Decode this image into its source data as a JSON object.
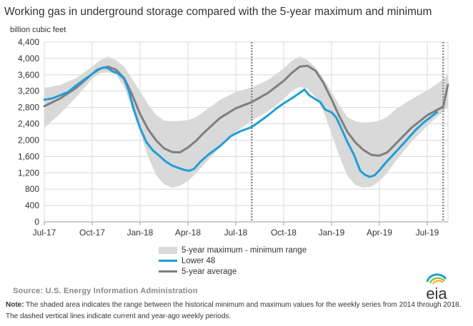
{
  "title": "Working gas in underground storage compared with the 5-year maximum and minimum",
  "ylabel": "billion cubic feet",
  "legend": {
    "range": "5-year maximum - minimum range",
    "lower48": "Lower 48",
    "average": "5-year average"
  },
  "source": "Source:  U.S. Energy Information Administration",
  "note_label": "Note:",
  "note_text": " The shaded area indicates the range between the historical minimum and maximum values for the weekly series from 2014 through 2018. The dashed vertical lines indicate current and year-ago weekly periods.",
  "logo_text": "eia",
  "colors": {
    "range": "#d9d9d9",
    "lower48": "#1f9fd6",
    "average": "#7f7f7f",
    "grid": "#d9d9d9",
    "dashed": "#8c8c8c"
  },
  "chart_data": {
    "type": "line",
    "x_ticks": [
      "Jul-17",
      "Oct-17",
      "Jan-18",
      "Apr-18",
      "Jul-18",
      "Oct-18",
      "Jan-19",
      "Apr-19",
      "Jul-19"
    ],
    "y_ticks": [
      "0",
      "400",
      "800",
      "1,200",
      "1,600",
      "2,000",
      "2,400",
      "2,800",
      "3,200",
      "3,600",
      "4,000",
      "4,400"
    ],
    "ylim": [
      0,
      4400
    ],
    "x_range_months": [
      0,
      25.3
    ],
    "grid": true,
    "legend_position": "bottom",
    "dashed_lines_month": [
      13,
      25
    ],
    "series": [
      {
        "name": "5-year maximum - minimum range",
        "kind": "band",
        "x": [
          0,
          1,
          2,
          3,
          3.5,
          4,
          4.5,
          5,
          5.5,
          6,
          6.5,
          7,
          7.5,
          8,
          8.5,
          9,
          9.5,
          10,
          11,
          12,
          13,
          14,
          15,
          15.5,
          16,
          16.5,
          17,
          17.5,
          18,
          18.5,
          19,
          19.5,
          20,
          20.5,
          21,
          21.5,
          22,
          23,
          24,
          25,
          25.3
        ],
        "max": [
          3280,
          3350,
          3520,
          3800,
          3960,
          4040,
          3960,
          3800,
          3500,
          3200,
          2880,
          2620,
          2480,
          2460,
          2470,
          2490,
          2560,
          2700,
          2980,
          3180,
          3290,
          3470,
          3750,
          3940,
          4040,
          3960,
          3780,
          3500,
          3170,
          2850,
          2560,
          2460,
          2430,
          2440,
          2480,
          2570,
          2750,
          3000,
          3220,
          3480,
          3620
        ],
        "min": [
          2300,
          2650,
          3050,
          3500,
          3640,
          3660,
          3600,
          3300,
          2760,
          2200,
          1600,
          1150,
          920,
          840,
          880,
          1000,
          1180,
          1400,
          1820,
          2200,
          2480,
          2700,
          3000,
          3200,
          3300,
          3260,
          3060,
          2700,
          2160,
          1600,
          1120,
          900,
          840,
          860,
          1000,
          1200,
          1480,
          1950,
          2350,
          2700,
          2820
        ]
      },
      {
        "name": "Lower 48",
        "kind": "line",
        "x": [
          0,
          0.5,
          1,
          1.5,
          2,
          2.5,
          3,
          3.3,
          3.7,
          4,
          4.3,
          4.6,
          5,
          5.3,
          5.6,
          6,
          6.4,
          6.8,
          7.2,
          7.6,
          8,
          8.4,
          8.8,
          9.1,
          9.4,
          9.8,
          10.3,
          11,
          11.7,
          12.3,
          13,
          13.5,
          14,
          14.5,
          15,
          15.5,
          15.8,
          16.1,
          16.3,
          16.6,
          17,
          17.3,
          17.6,
          18,
          18.3,
          18.6,
          19,
          19.4,
          19.8,
          20.1,
          20.4,
          20.7,
          21,
          21.4,
          22,
          22.7,
          23.3,
          23.8,
          24.2,
          24.6
        ],
        "y": [
          2990,
          3020,
          3100,
          3180,
          3340,
          3480,
          3620,
          3720,
          3780,
          3760,
          3680,
          3640,
          3500,
          3200,
          2760,
          2300,
          1950,
          1750,
          1620,
          1480,
          1380,
          1320,
          1270,
          1250,
          1300,
          1480,
          1650,
          1850,
          2100,
          2220,
          2320,
          2460,
          2600,
          2760,
          2900,
          3020,
          3100,
          3180,
          3240,
          3100,
          3000,
          2930,
          2750,
          2680,
          2550,
          2300,
          1950,
          1650,
          1250,
          1150,
          1100,
          1140,
          1260,
          1450,
          1700,
          2000,
          2260,
          2440,
          2560,
          2680
        ]
      },
      {
        "name": "5-year average",
        "kind": "line",
        "x": [
          0,
          1,
          2,
          3,
          3.5,
          4,
          4.5,
          5,
          5.5,
          6,
          6.5,
          7,
          7.5,
          8,
          8.5,
          9,
          9.5,
          10,
          11,
          12,
          13,
          14,
          15,
          15.5,
          16,
          16.5,
          17,
          17.5,
          18,
          18.5,
          19,
          19.5,
          20,
          20.5,
          21,
          21.5,
          22,
          23,
          24,
          25,
          25.3
        ],
        "y": [
          2830,
          3020,
          3280,
          3620,
          3750,
          3800,
          3720,
          3520,
          3120,
          2640,
          2270,
          2000,
          1800,
          1710,
          1700,
          1820,
          1980,
          2180,
          2540,
          2780,
          2930,
          3150,
          3450,
          3640,
          3800,
          3820,
          3700,
          3400,
          3000,
          2580,
          2200,
          1940,
          1760,
          1640,
          1620,
          1700,
          1900,
          2300,
          2610,
          2820,
          3360
        ]
      }
    ]
  }
}
